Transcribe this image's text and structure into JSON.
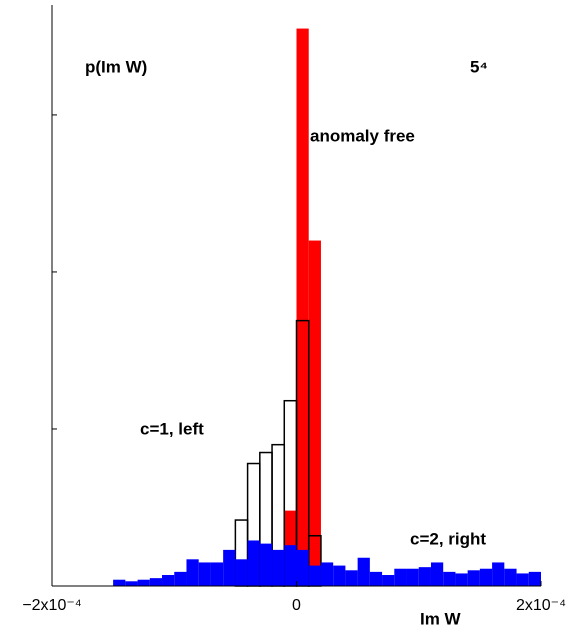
{
  "chart_data": {
    "type": "histogram",
    "title": "p(Im W)",
    "annotation": "5⁴",
    "xlabel": "Im W",
    "bins": [
      -0.0002,
      -0.00019,
      -0.00018,
      -0.00017,
      -0.00016,
      -0.00015,
      -0.00014,
      -0.00013,
      -0.00012,
      -0.00011,
      -0.0001,
      -9e-05,
      -8e-05,
      -7e-05,
      -6e-05,
      -5e-05,
      -4e-05,
      -3e-05,
      -2e-05,
      -1e-05,
      0,
      1e-05,
      2e-05,
      3e-05,
      4e-05,
      5e-05,
      6e-05,
      7e-05,
      8e-05,
      9e-05,
      0.0001,
      0.00011,
      0.00012,
      0.00013,
      0.00014,
      0.00015,
      0.00016,
      0.00017,
      0.00018,
      0.00019,
      0.0002
    ],
    "series": [
      {
        "name": "anomaly free",
        "color": "#ff0000",
        "style": "filled",
        "values": [
          0,
          0,
          0,
          0,
          0,
          0,
          0,
          0,
          0,
          0,
          0,
          0,
          0,
          0,
          0,
          0,
          0,
          0,
          0,
          0.48,
          3.55,
          2.2,
          0,
          0,
          0,
          0,
          0,
          0,
          0,
          0,
          0,
          0,
          0,
          0,
          0,
          0,
          0,
          0,
          0,
          0
        ]
      },
      {
        "name": "c=1, left",
        "color": "#000000",
        "style": "outline",
        "values": [
          0,
          0,
          0,
          0,
          0,
          0,
          0,
          0,
          0,
          0,
          0,
          0,
          0,
          0,
          0,
          0.42,
          0.78,
          0.85,
          0.9,
          1.18,
          1.69,
          0.32,
          0,
          0,
          0,
          0,
          0,
          0,
          0,
          0,
          0,
          0,
          0,
          0,
          0,
          0,
          0,
          0,
          0,
          0
        ]
      },
      {
        "name": "c=2, right",
        "color": "#0000ff",
        "style": "filled",
        "values": [
          0,
          0,
          0,
          0,
          0,
          0.04,
          0.03,
          0.04,
          0.05,
          0.07,
          0.09,
          0.17,
          0.15,
          0.15,
          0.23,
          0.17,
          0.29,
          0.27,
          0.23,
          0.26,
          0.23,
          0.13,
          0.15,
          0.13,
          0.1,
          0.18,
          0.09,
          0.07,
          0.11,
          0.11,
          0.12,
          0.15,
          0.09,
          0.08,
          0.1,
          0.11,
          0.15,
          0.11,
          0.08,
          0.09
        ]
      }
    ],
    "xlim": [
      -0.0002,
      0.0002
    ],
    "xticks": [
      {
        "value": -0.0002,
        "label": "−2x10⁻⁴"
      },
      0,
      {
        "value": 0.0002,
        "label": "2x10⁻⁴"
      }
    ],
    "ylim": [
      0,
      3.7
    ],
    "yticks": [
      1,
      2,
      3
    ]
  }
}
